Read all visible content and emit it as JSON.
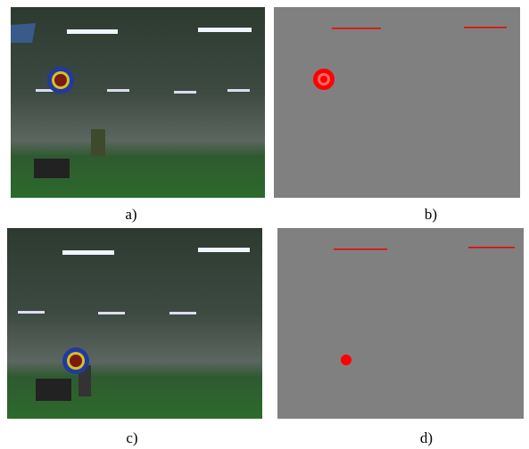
{
  "figure": {
    "captions": [
      "a)",
      "b)",
      "c)",
      "d)"
    ]
  }
}
